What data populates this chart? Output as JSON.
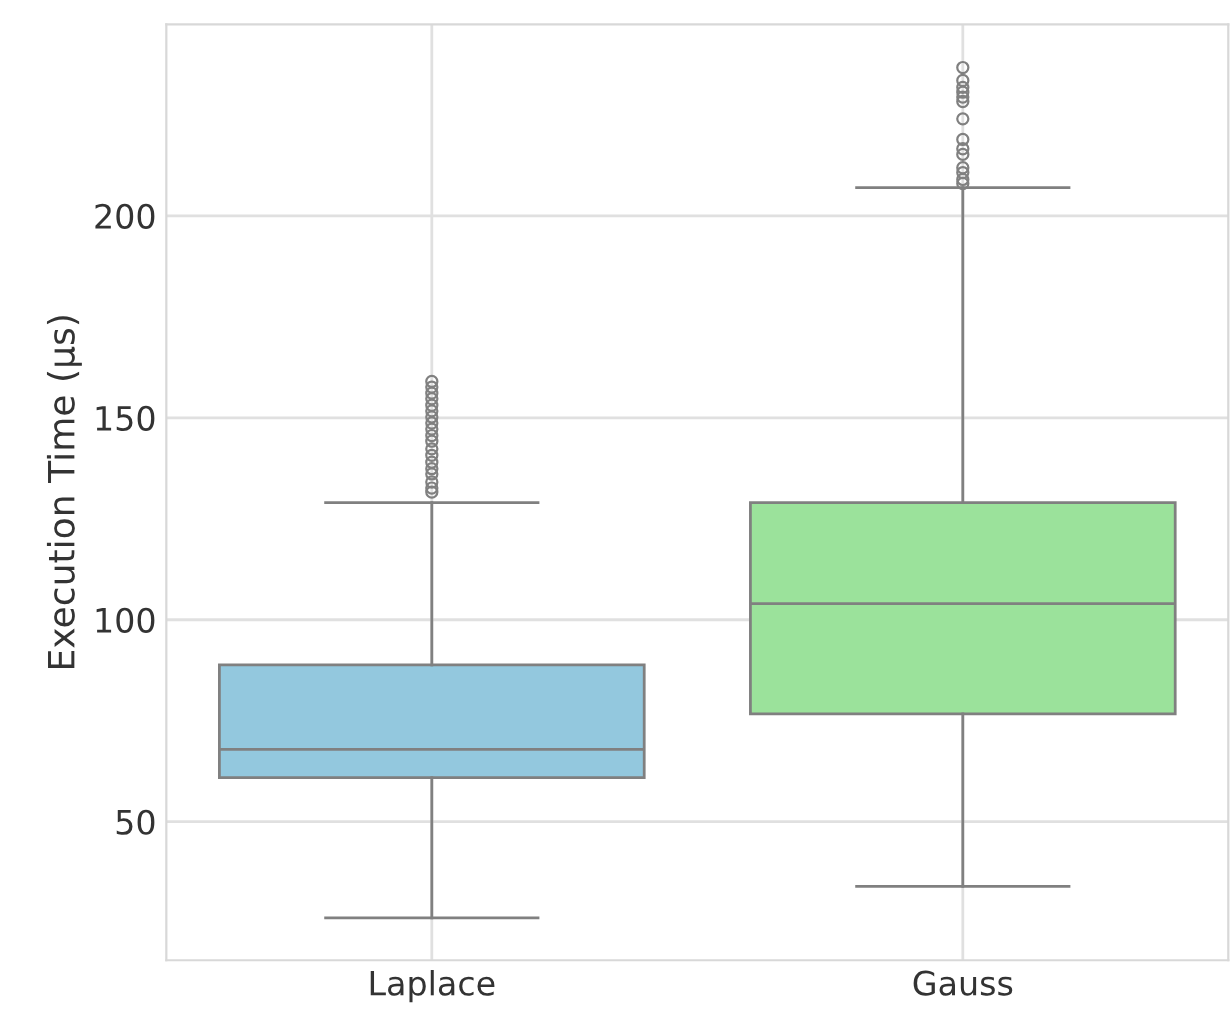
{
  "chart_data": {
    "type": "box",
    "ylabel": "Execution Time (µs)",
    "categories": [
      "Laplace",
      "Gauss"
    ],
    "colors": [
      "#93c8de",
      "#9be29b"
    ],
    "boxes": [
      {
        "low": 26.2,
        "q1": 60.9,
        "median": 67.9,
        "q3": 88.8,
        "high": 129.0,
        "outliers": [
          159.0,
          157.6,
          156.1,
          154.7,
          153.1,
          151.7,
          150.2,
          148.7,
          147.2,
          145.6,
          144.2,
          142.3,
          140.7,
          139.0,
          137.4,
          136.1,
          134.1,
          132.6,
          131.6
        ]
      },
      {
        "low": 34.0,
        "q1": 76.7,
        "median": 104.0,
        "q3": 129.0,
        "high": 207.0,
        "outliers": [
          236.7,
          233.5,
          231.8,
          230.6,
          229.4,
          228.3,
          224.0,
          218.9,
          216.6,
          215.2,
          211.9,
          210.7,
          209.0,
          208.0
        ]
      }
    ],
    "ylim": [
      15.7,
      247.4
    ],
    "yticks": [
      50,
      100,
      150,
      200
    ],
    "grid": true
  }
}
